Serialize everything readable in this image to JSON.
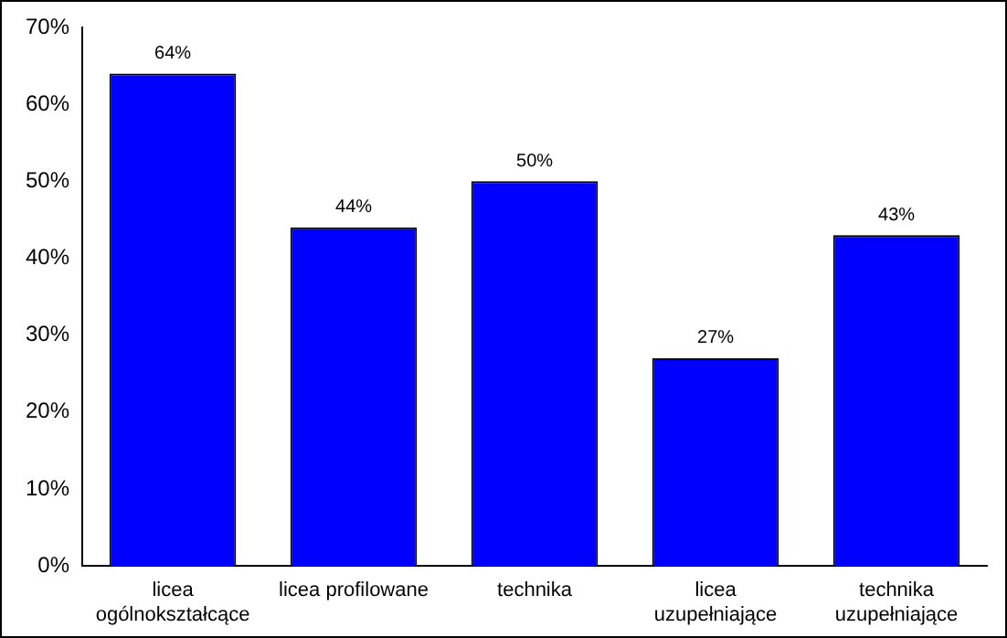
{
  "chart_data": {
    "type": "bar",
    "categories": [
      "licea ogólnokształcące",
      "licea profilowane",
      "technika",
      "licea uzupełniające",
      "technika uzupełniające"
    ],
    "values": [
      64,
      44,
      50,
      27,
      43
    ],
    "color": "#0000ff",
    "value_labels": [
      "64%",
      "44%",
      "50%",
      "27%",
      "43%"
    ],
    "ylim": [
      0,
      70
    ],
    "yticks": [
      {
        "value": 0,
        "label": "0%"
      },
      {
        "value": 10,
        "label": "10%"
      },
      {
        "value": 20,
        "label": "20%"
      },
      {
        "value": 30,
        "label": "30%"
      },
      {
        "value": 40,
        "label": "40%"
      },
      {
        "value": 50,
        "label": "50%"
      },
      {
        "value": 60,
        "label": "60%"
      },
      {
        "value": 70,
        "label": "70%"
      }
    ],
    "grid": false,
    "legend": false
  }
}
